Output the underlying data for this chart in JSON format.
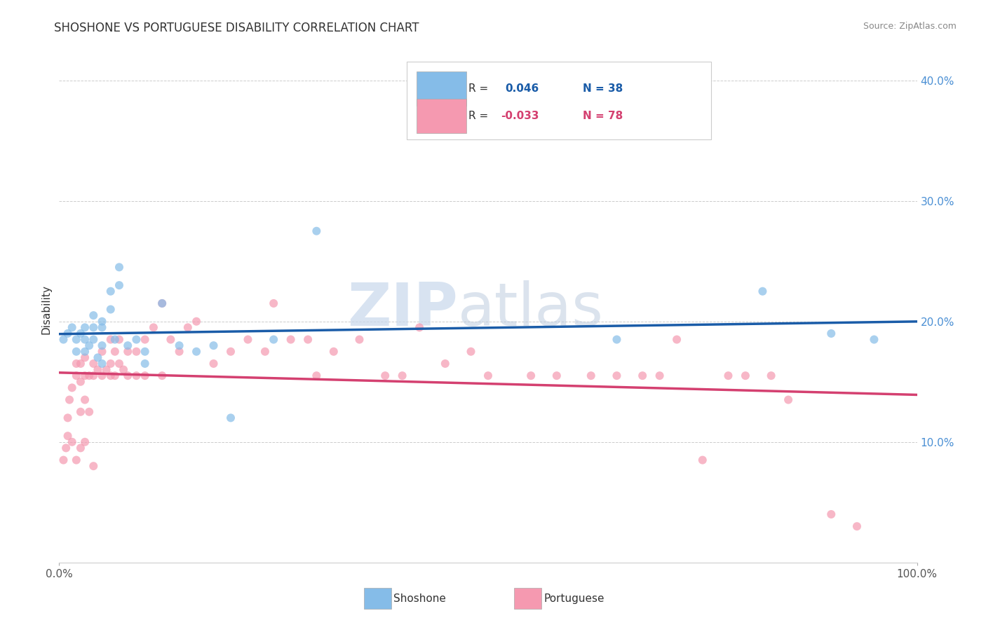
{
  "title": "SHOSHONE VS PORTUGUESE DISABILITY CORRELATION CHART",
  "source": "Source: ZipAtlas.com",
  "ylabel": "Disability",
  "shoshone_color": "#85bce8",
  "portuguese_color": "#f599b0",
  "line_shoshone_color": "#1a5ca8",
  "line_portuguese_color": "#d44070",
  "background_color": "#ffffff",
  "grid_color": "#cccccc",
  "shoshone_x": [
    0.005,
    0.01,
    0.015,
    0.02,
    0.02,
    0.025,
    0.03,
    0.03,
    0.03,
    0.035,
    0.04,
    0.04,
    0.04,
    0.045,
    0.05,
    0.05,
    0.05,
    0.05,
    0.06,
    0.06,
    0.065,
    0.07,
    0.07,
    0.08,
    0.09,
    0.1,
    0.1,
    0.12,
    0.14,
    0.16,
    0.18,
    0.2,
    0.25,
    0.3,
    0.65,
    0.82,
    0.9,
    0.95
  ],
  "shoshone_y": [
    0.185,
    0.19,
    0.195,
    0.185,
    0.175,
    0.19,
    0.195,
    0.185,
    0.175,
    0.18,
    0.205,
    0.195,
    0.185,
    0.17,
    0.2,
    0.195,
    0.18,
    0.165,
    0.225,
    0.21,
    0.185,
    0.245,
    0.23,
    0.18,
    0.185,
    0.175,
    0.165,
    0.215,
    0.18,
    0.175,
    0.18,
    0.12,
    0.185,
    0.275,
    0.185,
    0.225,
    0.19,
    0.185
  ],
  "portuguese_x": [
    0.005,
    0.008,
    0.01,
    0.01,
    0.012,
    0.015,
    0.015,
    0.02,
    0.02,
    0.02,
    0.025,
    0.025,
    0.025,
    0.025,
    0.03,
    0.03,
    0.03,
    0.03,
    0.035,
    0.035,
    0.04,
    0.04,
    0.04,
    0.045,
    0.05,
    0.05,
    0.055,
    0.06,
    0.06,
    0.06,
    0.065,
    0.065,
    0.07,
    0.07,
    0.075,
    0.08,
    0.08,
    0.09,
    0.09,
    0.1,
    0.1,
    0.11,
    0.12,
    0.12,
    0.13,
    0.14,
    0.15,
    0.16,
    0.18,
    0.2,
    0.22,
    0.24,
    0.25,
    0.27,
    0.29,
    0.3,
    0.32,
    0.35,
    0.38,
    0.4,
    0.42,
    0.45,
    0.48,
    0.5,
    0.55,
    0.58,
    0.62,
    0.65,
    0.68,
    0.7,
    0.72,
    0.75,
    0.78,
    0.8,
    0.83,
    0.85,
    0.9,
    0.93
  ],
  "portuguese_y": [
    0.085,
    0.095,
    0.105,
    0.12,
    0.135,
    0.1,
    0.145,
    0.085,
    0.155,
    0.165,
    0.095,
    0.125,
    0.15,
    0.165,
    0.1,
    0.135,
    0.155,
    0.17,
    0.125,
    0.155,
    0.08,
    0.155,
    0.165,
    0.16,
    0.155,
    0.175,
    0.16,
    0.155,
    0.165,
    0.185,
    0.175,
    0.155,
    0.165,
    0.185,
    0.16,
    0.155,
    0.175,
    0.155,
    0.175,
    0.155,
    0.185,
    0.195,
    0.155,
    0.215,
    0.185,
    0.175,
    0.195,
    0.2,
    0.165,
    0.175,
    0.185,
    0.175,
    0.215,
    0.185,
    0.185,
    0.155,
    0.175,
    0.185,
    0.155,
    0.155,
    0.195,
    0.165,
    0.175,
    0.155,
    0.155,
    0.155,
    0.155,
    0.155,
    0.155,
    0.155,
    0.185,
    0.085,
    0.155,
    0.155,
    0.155,
    0.135,
    0.04,
    0.03
  ],
  "xlim": [
    0.0,
    1.0
  ],
  "ylim": [
    0.0,
    0.42
  ],
  "yticks": [
    0.1,
    0.2,
    0.3,
    0.4
  ],
  "ytick_labels": [
    "10.0%",
    "20.0%",
    "30.0%",
    "40.0%"
  ],
  "xtick_labels": [
    "0.0%",
    "100.0%"
  ],
  "watermark_zip": "ZIP",
  "watermark_atlas": "atlas",
  "marker_size": 75,
  "alpha": 0.7,
  "legend_r_shoshone": "R =  0.046",
  "legend_n_shoshone": "N = 38",
  "legend_r_portuguese": "R = -0.033",
  "legend_n_portuguese": "N = 78"
}
